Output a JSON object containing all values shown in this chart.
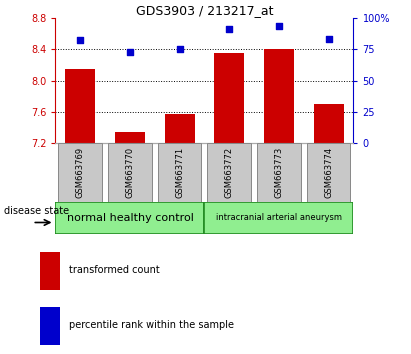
{
  "title": "GDS3903 / 213217_at",
  "samples": [
    "GSM663769",
    "GSM663770",
    "GSM663771",
    "GSM663772",
    "GSM663773",
    "GSM663774"
  ],
  "bar_values": [
    8.15,
    7.35,
    7.58,
    8.35,
    8.4,
    7.7
  ],
  "bar_bottom": 7.2,
  "scatter_values": [
    82,
    73,
    75,
    91,
    93,
    83
  ],
  "ylim_left": [
    7.2,
    8.8
  ],
  "ylim_right": [
    0,
    100
  ],
  "yticks_left": [
    7.2,
    7.6,
    8.0,
    8.4,
    8.8
  ],
  "yticks_right": [
    0,
    25,
    50,
    75,
    100
  ],
  "yticklabels_right": [
    "0",
    "25",
    "50",
    "75",
    "100%"
  ],
  "grid_values": [
    7.6,
    8.0,
    8.4
  ],
  "bar_color": "#cc0000",
  "scatter_color": "#0000cc",
  "group1_label": "normal healthy control",
  "group2_label": "intracranial arterial aneurysm",
  "group_bg_color": "#90ee90",
  "group_edge_color": "#228B22",
  "xticklabel_bg": "#c8c8c8",
  "xticklabel_edge": "#888888",
  "disease_state_label": "disease state",
  "legend_bar_label": "transformed count",
  "legend_scatter_label": "percentile rank within the sample",
  "left_axis_color": "#cc0000",
  "right_axis_color": "#0000cc",
  "title_fontsize": 9,
  "tick_fontsize": 7,
  "sample_fontsize": 6,
  "group_fontsize1": 8,
  "group_fontsize2": 6,
  "legend_fontsize": 7
}
